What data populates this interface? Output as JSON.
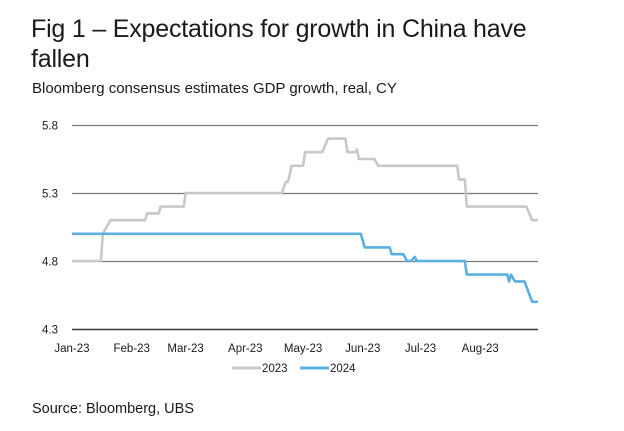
{
  "figure": {
    "title": "Fig 1 – Expectations for growth in China have fallen",
    "subtitle": "Bloomberg consensus estimates GDP growth, real, CY",
    "source": "Source: Bloomberg, UBS"
  },
  "colors": {
    "series_2023": "#c8c8c8",
    "series_2024": "#5ab0e0",
    "gridline": "#7a7a7a",
    "axis": "#3a3a3a"
  },
  "chart_data": {
    "type": "line",
    "title": "Fig 1 – Expectations for growth in China have fallen",
    "subtitle": "Bloomberg consensus estimates GDP growth, real, CY",
    "xlabel": "",
    "ylabel": "",
    "x_type": "date",
    "xlim": [
      "2023-01-01",
      "2023-08-31"
    ],
    "ylim": [
      4.3,
      5.8
    ],
    "yticks": [
      4.3,
      4.8,
      5.3,
      5.8
    ],
    "ytick_labels": [
      "4.3",
      "4.8",
      "5.3",
      "5.8"
    ],
    "xticks": [
      "2023-01-01",
      "2023-02-01",
      "2023-03-01",
      "2023-04-01",
      "2023-05-01",
      "2023-06-01",
      "2023-07-01",
      "2023-08-01"
    ],
    "xtick_labels": [
      "Jan-23",
      "Feb-23",
      "Mar-23",
      "Apr-23",
      "May-23",
      "Jun-23",
      "Jul-23",
      "Aug-23"
    ],
    "grid": true,
    "legend_position": "bottom-center",
    "series": [
      {
        "name": "2023",
        "points": [
          [
            "2023-01-01",
            4.8
          ],
          [
            "2023-01-16",
            4.8
          ],
          [
            "2023-01-17",
            5.0
          ],
          [
            "2023-01-21",
            5.1
          ],
          [
            "2023-02-08",
            5.1
          ],
          [
            "2023-02-09",
            5.15
          ],
          [
            "2023-02-15",
            5.15
          ],
          [
            "2023-02-16",
            5.2
          ],
          [
            "2023-02-28",
            5.2
          ],
          [
            "2023-03-01",
            5.3
          ],
          [
            "2023-04-20",
            5.3
          ],
          [
            "2023-04-22",
            5.38
          ],
          [
            "2023-04-23",
            5.38
          ],
          [
            "2023-04-24",
            5.43
          ],
          [
            "2023-04-25",
            5.5
          ],
          [
            "2023-05-01",
            5.5
          ],
          [
            "2023-05-02",
            5.6
          ],
          [
            "2023-05-11",
            5.6
          ],
          [
            "2023-05-14",
            5.7
          ],
          [
            "2023-05-23",
            5.7
          ],
          [
            "2023-05-24",
            5.6
          ],
          [
            "2023-05-28",
            5.6
          ],
          [
            "2023-05-29",
            5.62
          ],
          [
            "2023-05-30",
            5.55
          ],
          [
            "2023-06-07",
            5.55
          ],
          [
            "2023-06-09",
            5.5
          ],
          [
            "2023-07-20",
            5.5
          ],
          [
            "2023-07-21",
            5.4
          ],
          [
            "2023-07-24",
            5.4
          ],
          [
            "2023-07-25",
            5.2
          ],
          [
            "2023-08-25",
            5.2
          ],
          [
            "2023-08-28",
            5.1
          ],
          [
            "2023-08-31",
            5.1
          ]
        ]
      },
      {
        "name": "2024",
        "points": [
          [
            "2023-01-01",
            5.0
          ],
          [
            "2023-05-31",
            5.0
          ],
          [
            "2023-06-02",
            4.9
          ],
          [
            "2023-06-15",
            4.9
          ],
          [
            "2023-06-16",
            4.85
          ],
          [
            "2023-06-22",
            4.85
          ],
          [
            "2023-06-24",
            4.8
          ],
          [
            "2023-06-26",
            4.8
          ],
          [
            "2023-06-28",
            4.83
          ],
          [
            "2023-06-29",
            4.8
          ],
          [
            "2023-07-24",
            4.8
          ],
          [
            "2023-07-25",
            4.7
          ],
          [
            "2023-08-15",
            4.7
          ],
          [
            "2023-08-16",
            4.65
          ],
          [
            "2023-08-17",
            4.7
          ],
          [
            "2023-08-19",
            4.65
          ],
          [
            "2023-08-24",
            4.65
          ],
          [
            "2023-08-28",
            4.5
          ],
          [
            "2023-08-31",
            4.5
          ]
        ]
      }
    ]
  }
}
